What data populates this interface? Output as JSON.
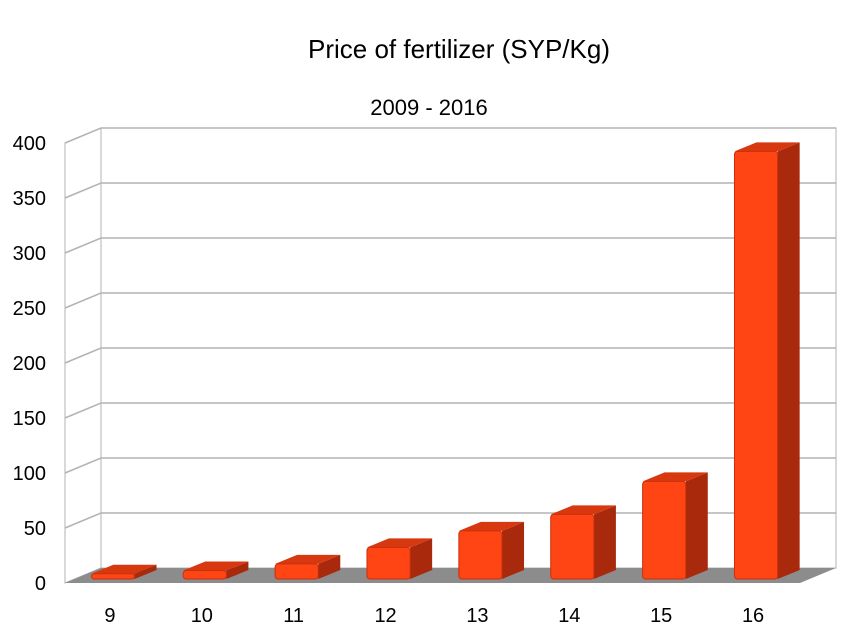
{
  "chart_data": {
    "type": "bar",
    "title": "Price of fertilizer (SYP/Kg)",
    "subtitle": "2009 - 2016",
    "categories": [
      "9",
      "10",
      "11",
      "12",
      "13",
      "14",
      "15",
      "16"
    ],
    "values": [
      12,
      15,
      21,
      36,
      51,
      66,
      96,
      396
    ],
    "ylim": [
      0,
      400
    ],
    "yticks": [
      0,
      50,
      100,
      150,
      200,
      250,
      300,
      350,
      400
    ],
    "grid": true,
    "legend": "none",
    "colors": {
      "bar_front": "#ff4513",
      "bar_side": "#a8290b",
      "bar_top": "#d8380f",
      "floor": "#8c8c8c",
      "gridline": "#b3b3b3",
      "wall": "#ffffff"
    }
  }
}
